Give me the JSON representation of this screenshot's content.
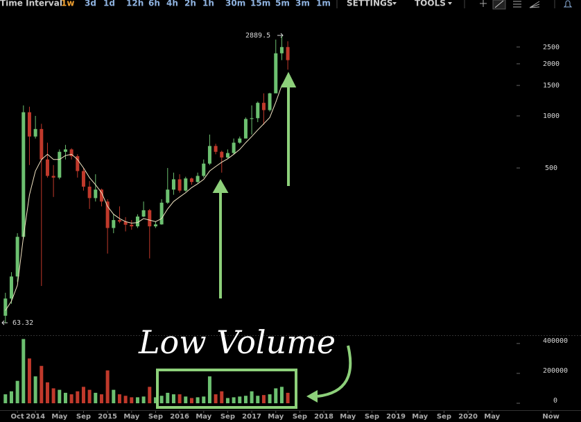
{
  "toolbar": {
    "label": "Time Interval:",
    "intervals": [
      "1w",
      "3d",
      "1d",
      "12h",
      "6h",
      "4h",
      "2h",
      "1h",
      "30m",
      "15m",
      "5m",
      "3m",
      "1m"
    ],
    "selected_color": "#f0a030",
    "settings": "SETTINGS",
    "tools": "TOOLS"
  },
  "chart_data": {
    "type": "candlestick",
    "log_scale": true,
    "up_color": "#6cc070",
    "down_color": "#c0392b",
    "ma_color": "#f3e6c4",
    "annotations": {
      "high_label": "2889.5",
      "low_label": "63.32",
      "note": "Low Volume"
    },
    "x": [
      -5,
      -4,
      -3,
      -2,
      -1,
      0,
      1,
      2,
      3,
      4,
      5,
      6,
      7,
      8,
      9,
      10,
      11,
      12,
      13,
      14,
      15,
      16,
      17,
      18,
      19,
      20,
      21,
      22,
      23,
      24,
      25,
      26,
      27,
      28,
      29,
      30,
      31,
      32,
      33,
      34,
      35,
      36,
      37,
      38,
      39,
      40,
      41,
      42
    ],
    "open": [
      70,
      88,
      118,
      200,
      1050,
      760,
      840,
      560,
      450,
      440,
      620,
      640,
      585,
      480,
      390,
      335,
      375,
      320,
      225,
      250,
      245,
      235,
      230,
      262,
      285,
      230,
      236,
      315,
      375,
      430,
      370,
      435,
      415,
      450,
      530,
      670,
      620,
      575,
      610,
      700,
      740,
      960,
      970,
      1190,
      1080,
      1350,
      2300,
      2500
    ],
    "high": [
      95,
      125,
      210,
      1150,
      1130,
      1000,
      900,
      700,
      520,
      640,
      680,
      650,
      600,
      500,
      420,
      460,
      380,
      330,
      270,
      300,
      260,
      250,
      270,
      320,
      290,
      245,
      330,
      500,
      470,
      460,
      445,
      440,
      470,
      560,
      780,
      690,
      630,
      640,
      740,
      760,
      980,
      1150,
      1210,
      1350,
      1360,
      2760,
      2889.5,
      2700
    ],
    "low": [
      63.32,
      82,
      110,
      195,
      520,
      740,
      104,
      440,
      340,
      430,
      560,
      560,
      440,
      370,
      290,
      320,
      300,
      160,
      210,
      240,
      215,
      220,
      225,
      260,
      150,
      225,
      235,
      310,
      350,
      360,
      365,
      400,
      410,
      440,
      520,
      600,
      470,
      570,
      600,
      690,
      740,
      780,
      920,
      890,
      1060,
      1350,
      2100,
      1850
    ],
    "close": [
      88,
      118,
      200,
      1050,
      760,
      840,
      560,
      450,
      440,
      620,
      640,
      585,
      480,
      390,
      335,
      375,
      320,
      225,
      250,
      245,
      235,
      230,
      262,
      285,
      230,
      236,
      315,
      375,
      430,
      370,
      435,
      415,
      450,
      530,
      670,
      620,
      575,
      610,
      700,
      740,
      960,
      970,
      1190,
      1080,
      1350,
      2300,
      2500,
      2100
    ],
    "ma": [
      75,
      85,
      105,
      200,
      350,
      480,
      560,
      600,
      560,
      560,
      590,
      600,
      560,
      500,
      440,
      400,
      360,
      300,
      270,
      255,
      245,
      240,
      242,
      255,
      250,
      245,
      255,
      290,
      320,
      340,
      360,
      385,
      405,
      430,
      480,
      510,
      540,
      565,
      600,
      640,
      700,
      760,
      830,
      900,
      980,
      1200,
      1500,
      1700
    ],
    "volume": [
      60000,
      80000,
      150000,
      430000,
      300000,
      180000,
      250000,
      140000,
      100000,
      90000,
      70000,
      60000,
      80000,
      110000,
      90000,
      70000,
      60000,
      220000,
      90000,
      60000,
      50000,
      40000,
      40000,
      45000,
      110000,
      40000,
      50000,
      70000,
      60000,
      60000,
      45000,
      35000,
      40000,
      45000,
      180000,
      60000,
      80000,
      35000,
      40000,
      45000,
      50000,
      80000,
      50000,
      55000,
      60000,
      100000,
      110000,
      70000
    ],
    "xlim": [
      -5.9,
      90.8
    ],
    "xticks": [
      {
        "value": -3,
        "label": "Oct"
      },
      {
        "value": 0,
        "label": "2014"
      },
      {
        "value": 4,
        "label": "May"
      },
      {
        "value": 8,
        "label": "Sep"
      },
      {
        "value": 12,
        "label": "2015"
      },
      {
        "value": 16,
        "label": "May"
      },
      {
        "value": 20,
        "label": "Sep"
      },
      {
        "value": 24,
        "label": "2016"
      },
      {
        "value": 28,
        "label": "May"
      },
      {
        "value": 32,
        "label": "Sep"
      },
      {
        "value": 36,
        "label": "2017"
      },
      {
        "value": 40,
        "label": "May"
      },
      {
        "value": 44,
        "label": "Sep"
      },
      {
        "value": 48,
        "label": "2018"
      },
      {
        "value": 52,
        "label": "May"
      },
      {
        "value": 56,
        "label": "Sep"
      },
      {
        "value": 60,
        "label": "2019"
      },
      {
        "value": 64,
        "label": "May"
      },
      {
        "value": 68,
        "label": "Sep"
      },
      {
        "value": 72,
        "label": "2020"
      },
      {
        "value": 76,
        "label": "May"
      },
      {
        "value": 85.8,
        "label": "Now"
      }
    ],
    "ylim": [
      54,
      4070
    ],
    "yticks": [
      500,
      1000,
      1500,
      2000,
      2500
    ],
    "y2lim": [
      0,
      446000
    ],
    "y2ticks": [
      0,
      200000,
      400000
    ]
  }
}
